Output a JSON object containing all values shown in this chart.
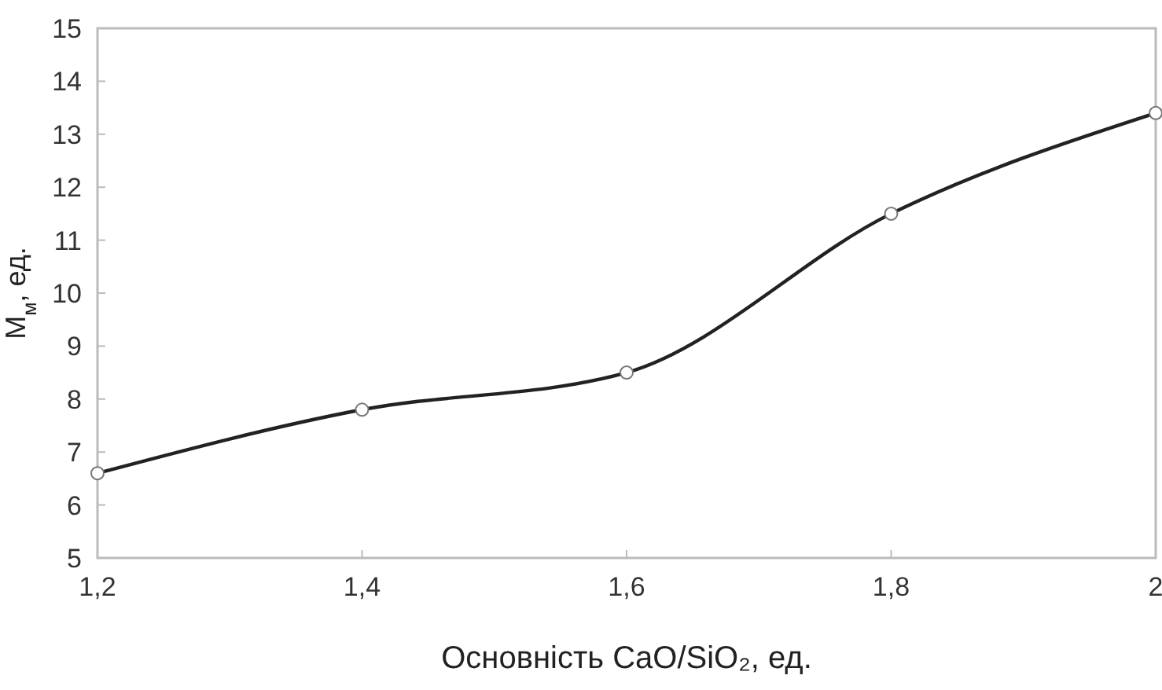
{
  "chart_data": {
    "type": "line",
    "xlabel": "Основність CaO/SiO₂, ед.",
    "ylabel": "M$_{м}$, ед.",
    "x": [
      1.2,
      1.4,
      1.6,
      1.8,
      2.0
    ],
    "series": [
      {
        "color": "#222222",
        "values": [
          6.6,
          7.8,
          8.5,
          11.5,
          13.4
        ]
      }
    ],
    "xlim": [
      1.2,
      2.0
    ],
    "xticks": [
      {
        "value": 1.2,
        "label": "1,2"
      },
      {
        "value": 1.4,
        "label": "1,4"
      },
      {
        "value": 1.6,
        "label": "1,6"
      },
      {
        "value": 1.8,
        "label": "1,8"
      },
      2
    ],
    "ylim": [
      5,
      15
    ],
    "yticks": [
      5,
      6,
      7,
      8,
      9,
      10,
      11,
      12,
      13,
      14,
      15
    ],
    "grid": false,
    "marker": "circle",
    "line_style": "solid"
  }
}
